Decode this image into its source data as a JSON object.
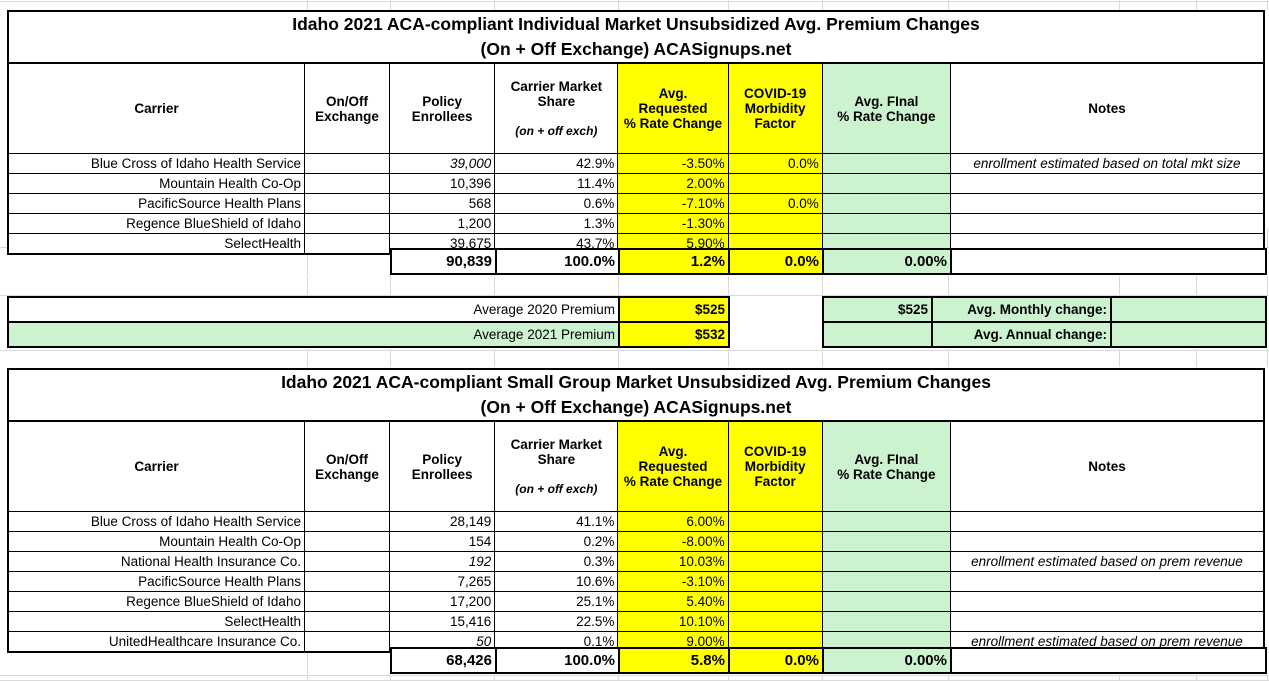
{
  "table1": {
    "title_line1": "Idaho 2021 ACA-compliant Individual Market Unsubsidized Avg. Premium Changes",
    "title_line2": "(On + Off Exchange) ACASignups.net",
    "headers": {
      "carrier": "Carrier",
      "exchange": "On/Off\nExchange",
      "enrollees": "Policy\nEnrollees",
      "share": "Carrier Market\nShare",
      "share_sub": "(on + off exch)",
      "requested": "Avg.\nRequested\n% Rate Change",
      "covid": "COVID-19\nMorbidity\nFactor",
      "final": "Avg. FInal\n% Rate Change",
      "notes": "Notes"
    },
    "rows": [
      {
        "carrier": "Blue Cross of Idaho Health Service",
        "exchange": "",
        "enrollees": "39,000",
        "share": "42.9%",
        "requested": "-3.50%",
        "covid": "0.0%",
        "final": "",
        "notes": "enrollment estimated based on total mkt size"
      },
      {
        "carrier": "Mountain Health Co-Op",
        "exchange": "",
        "enrollees": "10,396",
        "share": "11.4%",
        "requested": "2.00%",
        "covid": "",
        "final": "",
        "notes": ""
      },
      {
        "carrier": "PacificSource Health Plans",
        "exchange": "",
        "enrollees": "568",
        "share": "0.6%",
        "requested": "-7.10%",
        "covid": "0.0%",
        "final": "",
        "notes": ""
      },
      {
        "carrier": "Regence BlueShield of Idaho",
        "exchange": "",
        "enrollees": "1,200",
        "share": "1.3%",
        "requested": "-1.30%",
        "covid": "",
        "final": "",
        "notes": ""
      },
      {
        "carrier": "SelectHealth",
        "exchange": "",
        "enrollees": "39,675",
        "share": "43.7%",
        "requested": "5.90%",
        "covid": "",
        "final": "",
        "notes": ""
      }
    ],
    "totals": {
      "enrollees": "90,839",
      "share": "100.0%",
      "requested": "1.2%",
      "covid": "0.0%",
      "final": "0.00%",
      "notes": ""
    }
  },
  "premium": {
    "row1_label": "Average 2020 Premium",
    "row1_value": "$525",
    "row2_label": "Average 2021 Premium",
    "row2_value": "$532",
    "right_value": "$525",
    "monthly_label": "Avg. Monthly change:",
    "monthly_value": "",
    "annual_label": "Avg. Annual change:",
    "annual_value": ""
  },
  "table2": {
    "title_line1": "Idaho 2021 ACA-compliant Small Group Market Unsubsidized Avg. Premium Changes",
    "title_line2": "(On + Off Exchange) ACASignups.net",
    "headers": {
      "carrier": "Carrier",
      "exchange": "On/Off\nExchange",
      "enrollees": "Policy\nEnrollees",
      "share": "Carrier Market\nShare",
      "share_sub": "(on + off exch)",
      "requested": "Avg.\nRequested\n% Rate Change",
      "covid": "COVID-19\nMorbidity\nFactor",
      "final": "Avg. FInal\n% Rate Change",
      "notes": "Notes"
    },
    "rows": [
      {
        "carrier": "Blue Cross of Idaho Health Service",
        "exchange": "",
        "enrollees": "28,149",
        "share": "41.1%",
        "requested": "6.00%",
        "covid": "",
        "final": "",
        "notes": ""
      },
      {
        "carrier": "Mountain Health Co-Op",
        "exchange": "",
        "enrollees": "154",
        "share": "0.2%",
        "requested": "-8.00%",
        "covid": "",
        "final": "",
        "notes": ""
      },
      {
        "carrier": "National Health Insurance Co.",
        "exchange": "",
        "enrollees": "192",
        "share": "0.3%",
        "requested": "10.03%",
        "covid": "",
        "final": "",
        "notes": "enrollment estimated based on prem revenue"
      },
      {
        "carrier": "PacificSource Health Plans",
        "exchange": "",
        "enrollees": "7,265",
        "share": "10.6%",
        "requested": "-3.10%",
        "covid": "",
        "final": "",
        "notes": ""
      },
      {
        "carrier": "Regence BlueShield of Idaho",
        "exchange": "",
        "enrollees": "17,200",
        "share": "25.1%",
        "requested": "5.40%",
        "covid": "",
        "final": "",
        "notes": ""
      },
      {
        "carrier": "SelectHealth",
        "exchange": "",
        "enrollees": "15,416",
        "share": "22.5%",
        "requested": "10.10%",
        "covid": "",
        "final": "",
        "notes": ""
      },
      {
        "carrier": "UnitedHealthcare Insurance Co.",
        "exchange": "",
        "enrollees": "50",
        "share": "0.1%",
        "requested": "9.00%",
        "covid": "",
        "final": "",
        "notes": "enrollment estimated based on prem revenue"
      }
    ],
    "totals": {
      "enrollees": "68,426",
      "share": "100.0%",
      "requested": "5.8%",
      "covid": "0.0%",
      "final": "0.00%",
      "notes": ""
    }
  },
  "colors": {
    "highlight_yellow": "#ffff00",
    "highlight_green": "#ccf2cf",
    "gridline": "#d9d9d9"
  }
}
